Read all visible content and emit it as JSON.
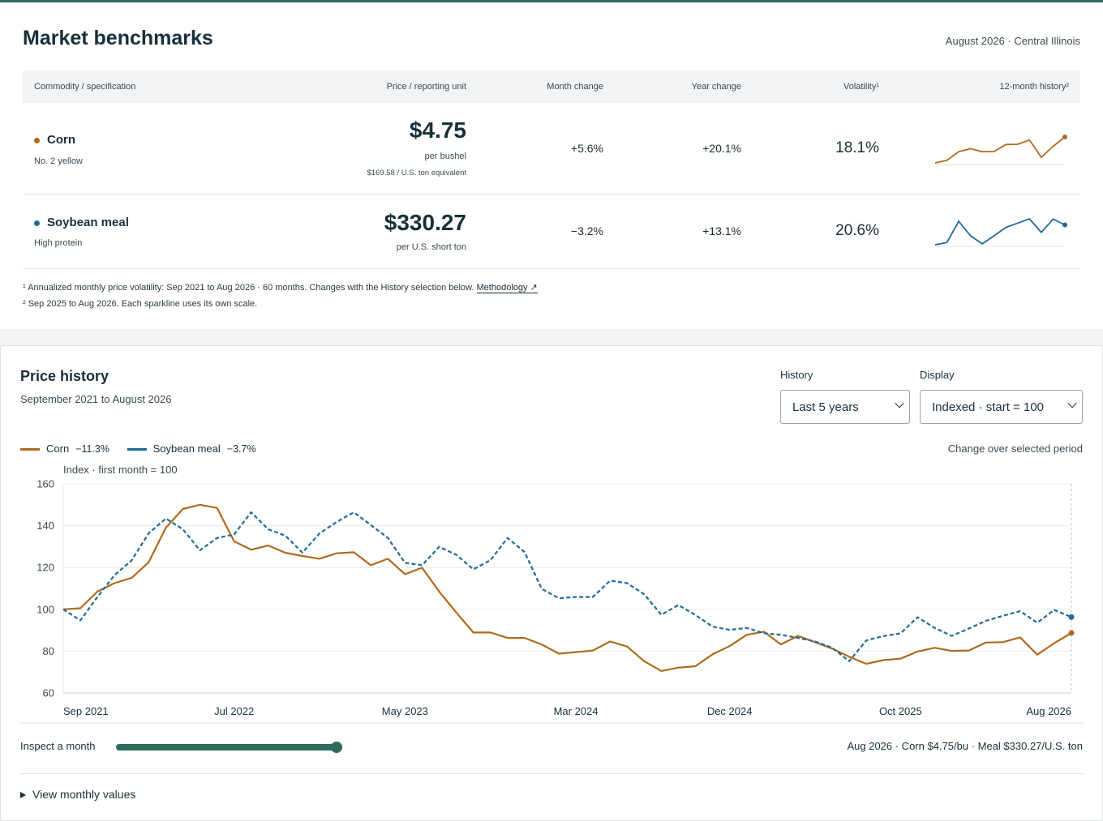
{
  "benchmarks": {
    "title": "Market benchmarks",
    "meta": "August 2026 · Central Illinois",
    "columns": [
      "Commodity / specification",
      "Price / reporting unit",
      "Month change",
      "Year change",
      "Volatility¹",
      "12-month history²"
    ],
    "rows": [
      {
        "name": "Corn",
        "spec": "No. 2 yellow",
        "price": "$4.75",
        "unit": "per bushel",
        "equivalent": "$169.58 / U.S. ton equivalent",
        "month_change": "+5.6%",
        "year_change": "+20.1%",
        "volatility": "18.1%",
        "color": "#b06a1e",
        "spark": [
          100.0,
          101.0,
          104.3,
          105.5,
          104.3,
          104.4,
          107.1,
          107.2,
          108.8,
          102.2,
          106.4,
          110.0
        ]
      },
      {
        "name": "Soybean meal",
        "spec": "High protein",
        "price": "$330.27",
        "unit": "per U.S. short ton",
        "equivalent": "",
        "month_change": "−3.2%",
        "year_change": "+13.1%",
        "volatility": "20.6%",
        "color": "#236b94",
        "spark": [
          88.5,
          89.5,
          98.9,
          92.5,
          88.9,
          92.5,
          96.2,
          98.1,
          100.0,
          94.0,
          99.9,
          97.3
        ]
      }
    ],
    "note1": "¹ Annualized monthly price volatility: Sep 2021 to Aug 2026 · 60 months. Changes with the History selection below.",
    "note1_link": "Methodology ↗",
    "note2": "² Sep 2025 to Aug 2026. Each sparkline uses its own scale."
  },
  "history": {
    "title": "Price history",
    "range": "September 2021 to August 2026",
    "history_label": "History",
    "history_value": "Last 5 years",
    "display_label": "Display",
    "display_value": "Indexed · start = 100",
    "change_caption": "Change over selected period",
    "inspect_label": "Inspect a month",
    "inspect_position": 1.0,
    "readout": "Aug 2026 · Corn $4.75/bu · Meal $330.27/U.S. ton",
    "details_label": "View monthly values"
  },
  "colors": {
    "corn": "#b06a1e",
    "meal": "#236b94",
    "accent": "#2f6b5e"
  },
  "chart_data": {
    "type": "line",
    "ylabel": "Index · first month = 100",
    "ylim": [
      60,
      160
    ],
    "yticks": [
      60,
      80,
      100,
      120,
      140,
      160
    ],
    "xtick_labels": [
      "Sep 2021",
      "Jul 2022",
      "May 2023",
      "Mar 2024",
      "Dec 2024",
      "Oct 2025",
      "Aug 2026"
    ],
    "xtick_index": [
      0,
      10,
      20,
      30,
      39,
      49,
      59
    ],
    "x": [
      "Sep 2021",
      "Oct 2021",
      "Nov 2021",
      "Dec 2021",
      "Jan 2022",
      "Feb 2022",
      "Mar 2022",
      "Apr 2022",
      "May 2022",
      "Jun 2022",
      "Jul 2022",
      "Aug 2022",
      "Sep 2022",
      "Oct 2022",
      "Nov 2022",
      "Dec 2022",
      "Jan 2023",
      "Feb 2023",
      "Mar 2023",
      "Apr 2023",
      "May 2023",
      "Jun 2023",
      "Jul 2023",
      "Aug 2023",
      "Sep 2023",
      "Oct 2023",
      "Nov 2023",
      "Dec 2023",
      "Jan 2024",
      "Feb 2024",
      "Mar 2024",
      "Apr 2024",
      "May 2024",
      "Jun 2024",
      "Jul 2024",
      "Aug 2024",
      "Sep 2024",
      "Oct 2024",
      "Nov 2024",
      "Dec 2024",
      "Jan 2025",
      "Feb 2025",
      "Mar 2025",
      "Apr 2025",
      "May 2025",
      "Jun 2025",
      "Jul 2025",
      "Aug 2025",
      "Sep 2025",
      "Oct 2025",
      "Nov 2025",
      "Dec 2025",
      "Jan 2026",
      "Feb 2026",
      "Mar 2026",
      "Apr 2026",
      "May 2026",
      "Jun 2026",
      "Jul 2026",
      "Aug 2026"
    ],
    "series": [
      {
        "name": "Corn",
        "change": "−11.3%",
        "dashed": false,
        "values": [
          100,
          100.5,
          108.5,
          112.5,
          115,
          122.5,
          139,
          148,
          150,
          148.5,
          132.5,
          128.5,
          130.5,
          127,
          125.5,
          124.2,
          126.8,
          127.3,
          121.1,
          124.2,
          116.8,
          119.9,
          108.5,
          98.5,
          88.9,
          88.9,
          86.3,
          86.3,
          83.2,
          78.8,
          79.5,
          80.3,
          84.6,
          82.2,
          75.2,
          70.5,
          72.1,
          72.8,
          78.5,
          82.4,
          87.8,
          89.3,
          83.2,
          87.3,
          84.3,
          81.2,
          77.3,
          73.9,
          75.7,
          76.4,
          79.8,
          81.6,
          80.1,
          80.3,
          84.1,
          84.3,
          86.6,
          78.3,
          83.8,
          88.7
        ]
      },
      {
        "name": "Soybean meal",
        "change": "−3.7%",
        "dashed": true,
        "values": [
          100,
          94.7,
          105.9,
          116.3,
          123.4,
          136.3,
          143.4,
          138.3,
          128.2,
          134.1,
          135.8,
          146.4,
          138.3,
          135.2,
          127.1,
          136.3,
          141.8,
          146.4,
          140.3,
          134.1,
          122.2,
          121.1,
          129.9,
          126.1,
          119.1,
          123.5,
          134.1,
          127.4,
          109.8,
          105.3,
          105.9,
          105.9,
          113.7,
          112.5,
          107.2,
          97.4,
          102,
          97.3,
          91.7,
          90.2,
          91.1,
          88.6,
          87.8,
          86.3,
          84.6,
          81.6,
          75.2,
          85.1,
          87.2,
          88.5,
          96.2,
          91.1,
          87.3,
          90.8,
          94.5,
          96.9,
          99.1,
          93.6,
          99.7,
          96.3
        ]
      }
    ]
  }
}
